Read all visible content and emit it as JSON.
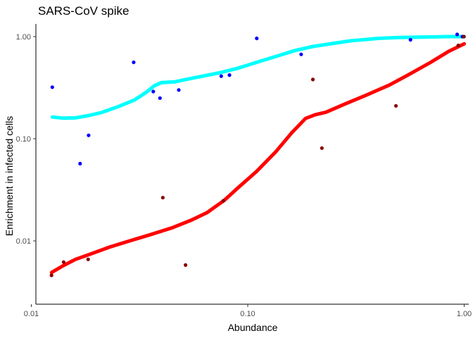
{
  "chart_data": {
    "type": "scatter",
    "title": "SARS-CoV spike",
    "xlabel": "Abundance",
    "ylabel": "Enrichment in infected cells",
    "x_scale": "log10",
    "y_scale": "log10",
    "xlim": [
      0.0105,
      1.05
    ],
    "ylim": [
      0.0024,
      1.33
    ],
    "x_ticks": [
      0.01,
      0.1,
      1.0
    ],
    "x_tick_labels": [
      "0.01",
      "0.10",
      "1.00"
    ],
    "y_ticks": [
      0.01,
      0.1,
      1.0
    ],
    "y_tick_labels": [
      "0.01",
      "0.10",
      "1.00"
    ],
    "grid": false,
    "legend": "none",
    "series": [
      {
        "kind": "points",
        "color": "#0000ff",
        "points": [
          [
            0.0125,
            0.32
          ],
          [
            0.0168,
            0.057
          ],
          [
            0.0184,
            0.108
          ],
          [
            0.0297,
            0.56
          ],
          [
            0.0366,
            0.29
          ],
          [
            0.0393,
            0.25
          ],
          [
            0.048,
            0.3
          ],
          [
            0.0754,
            0.41
          ],
          [
            0.0823,
            0.42
          ],
          [
            0.1101,
            0.96
          ],
          [
            0.1765,
            0.67
          ],
          [
            0.565,
            0.93
          ],
          [
            0.928,
            1.05
          ],
          [
            0.9816,
            1.0
          ]
        ]
      },
      {
        "kind": "points",
        "color": "#8b0000",
        "points": [
          [
            0.0124,
            0.0046
          ],
          [
            0.0141,
            0.0062
          ],
          [
            0.0183,
            0.0066
          ],
          [
            0.0405,
            0.0265
          ],
          [
            0.0516,
            0.0058
          ],
          [
            0.0771,
            0.0247
          ],
          [
            0.1999,
            0.38
          ],
          [
            0.2201,
            0.081
          ],
          [
            0.4839,
            0.21
          ],
          [
            0.9393,
            0.82
          ],
          [
            0.9969,
            1.0
          ]
        ]
      },
      {
        "kind": "smooth",
        "color": "#00ffff",
        "points": [
          [
            0.0125,
            0.163
          ],
          [
            0.014,
            0.159
          ],
          [
            0.016,
            0.16
          ],
          [
            0.018,
            0.167
          ],
          [
            0.021,
            0.18
          ],
          [
            0.025,
            0.205
          ],
          [
            0.03,
            0.24
          ],
          [
            0.034,
            0.285
          ],
          [
            0.037,
            0.33
          ],
          [
            0.04,
            0.355
          ],
          [
            0.046,
            0.36
          ],
          [
            0.05,
            0.375
          ],
          [
            0.06,
            0.405
          ],
          [
            0.075,
            0.445
          ],
          [
            0.09,
            0.49
          ],
          [
            0.11,
            0.56
          ],
          [
            0.135,
            0.64
          ],
          [
            0.165,
            0.73
          ],
          [
            0.2,
            0.8
          ],
          [
            0.25,
            0.86
          ],
          [
            0.3,
            0.91
          ],
          [
            0.4,
            0.96
          ],
          [
            0.5,
            0.98
          ],
          [
            0.65,
            0.99
          ],
          [
            0.85,
            1.0
          ],
          [
            1.0,
            1.0
          ]
        ]
      },
      {
        "kind": "smooth",
        "color": "#ff0000",
        "points": [
          [
            0.0124,
            0.0049
          ],
          [
            0.014,
            0.0057
          ],
          [
            0.016,
            0.0066
          ],
          [
            0.019,
            0.0075
          ],
          [
            0.023,
            0.0087
          ],
          [
            0.028,
            0.0099
          ],
          [
            0.035,
            0.0114
          ],
          [
            0.045,
            0.0135
          ],
          [
            0.055,
            0.016
          ],
          [
            0.065,
            0.019
          ],
          [
            0.078,
            0.025
          ],
          [
            0.09,
            0.033
          ],
          [
            0.11,
            0.048
          ],
          [
            0.135,
            0.075
          ],
          [
            0.16,
            0.115
          ],
          [
            0.185,
            0.158
          ],
          [
            0.205,
            0.172
          ],
          [
            0.23,
            0.182
          ],
          [
            0.28,
            0.218
          ],
          [
            0.35,
            0.265
          ],
          [
            0.45,
            0.335
          ],
          [
            0.55,
            0.42
          ],
          [
            0.7,
            0.56
          ],
          [
            0.85,
            0.72
          ],
          [
            1.0,
            0.85
          ]
        ]
      }
    ]
  }
}
